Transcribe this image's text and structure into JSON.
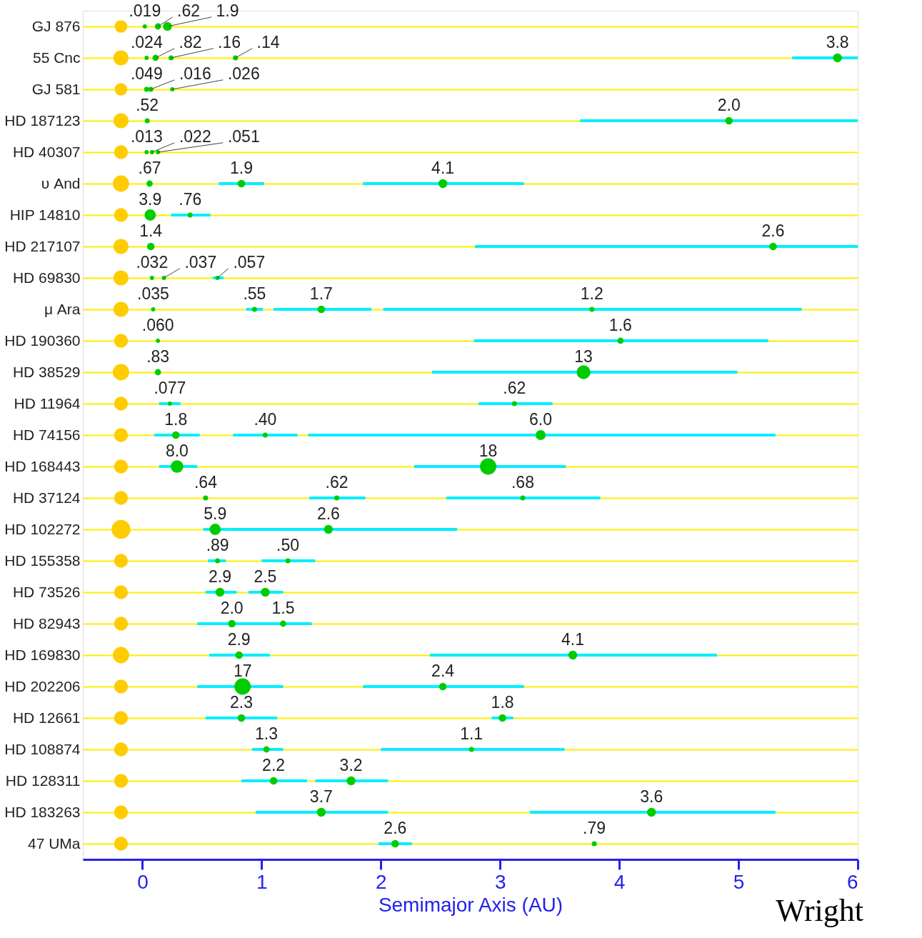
{
  "chart_data": {
    "type": "bubble",
    "orientation": "horizontal",
    "xlabel": "Semimajor Axis (AU)",
    "xlim": [
      -0.5,
      6
    ],
    "xticks": [
      0,
      1,
      2,
      3,
      4,
      5,
      6
    ],
    "grid": "y",
    "categories": [
      "GJ 876",
      "55 Cnc",
      "GJ 581",
      "HD 187123",
      "HD 40307",
      "υ And",
      "HIP 14810",
      "HD 217107",
      "HD 69830",
      "μ Ara",
      "HD 190360",
      "HD 38529",
      "HD 11964",
      "HD 74156",
      "HD 168443",
      "HD 37124",
      "HD 102272",
      "HD 155358",
      "HD 73526",
      "HD 82943",
      "HD 169830",
      "HD 202206",
      "HD 12661",
      "HD 108874",
      "HD 128311",
      "HD 183263",
      "47 UMa"
    ],
    "annotations": [
      "Wright",
      {
        "text": ".019",
        "x": 0.02,
        "y": "GJ 876"
      },
      {
        "text": ".62",
        "x": 0.13,
        "y": "GJ 876"
      },
      {
        "text": "1.9",
        "x": 0.21,
        "y": "GJ 876"
      },
      {
        "text": ".024",
        "x": 0.035,
        "y": "55 Cnc"
      },
      {
        "text": ".82",
        "x": 0.11,
        "y": "55 Cnc"
      },
      {
        "text": ".16",
        "x": 0.24,
        "y": "55 Cnc"
      },
      {
        "text": ".14",
        "x": 0.78,
        "y": "55 Cnc"
      },
      {
        "text": "3.8",
        "x": 5.83,
        "y": "55 Cnc"
      },
      {
        "text": ".049",
        "x": 0.035,
        "y": "GJ 581"
      },
      {
        "text": ".016",
        "x": 0.07,
        "y": "GJ 581"
      },
      {
        "text": ".026",
        "x": 0.25,
        "y": "GJ 581"
      },
      {
        "text": ".52",
        "x": 0.04,
        "y": "HD 187123"
      },
      {
        "text": "2.0",
        "x": 4.92,
        "y": "HD 187123"
      },
      {
        "text": ".013",
        "x": 0.035,
        "y": "HD 40307"
      },
      {
        "text": ".022",
        "x": 0.08,
        "y": "HD 40307"
      },
      {
        "text": ".051",
        "x": 0.13,
        "y": "HD 40307"
      },
      {
        "text": ".67",
        "x": 0.06,
        "y": "υ And"
      },
      {
        "text": "1.9",
        "x": 0.83,
        "y": "υ And"
      },
      {
        "text": "4.1",
        "x": 2.52,
        "y": "υ And"
      },
      {
        "text": "3.9",
        "x": 0.065,
        "y": "HIP 14810"
      },
      {
        "text": ".76",
        "x": 0.4,
        "y": "HIP 14810"
      },
      {
        "text": "1.4",
        "x": 0.07,
        "y": "HD 217107"
      },
      {
        "text": "2.6",
        "x": 5.29,
        "y": "HD 217107"
      },
      {
        "text": ".032",
        "x": 0.08,
        "y": "HD 69830"
      },
      {
        "text": ".037",
        "x": 0.18,
        "y": "HD 69830"
      },
      {
        "text": ".057",
        "x": 0.63,
        "y": "HD 69830"
      },
      {
        "text": ".035",
        "x": 0.09,
        "y": "μ Ara"
      },
      {
        "text": ".55",
        "x": 0.94,
        "y": "μ Ara"
      },
      {
        "text": "1.7",
        "x": 1.5,
        "y": "μ Ara"
      },
      {
        "text": "1.2",
        "x": 3.77,
        "y": "μ Ara"
      },
      {
        "text": ".060",
        "x": 0.13,
        "y": "HD 190360"
      },
      {
        "text": "1.6",
        "x": 4.01,
        "y": "HD 190360"
      },
      {
        "text": ".83",
        "x": 0.13,
        "y": "HD 38529"
      },
      {
        "text": "13",
        "x": 3.7,
        "y": "HD 38529"
      },
      {
        "text": ".077",
        "x": 0.23,
        "y": "HD 11964"
      },
      {
        "text": ".62",
        "x": 3.12,
        "y": "HD 11964"
      },
      {
        "text": "1.8",
        "x": 0.28,
        "y": "HD 74156"
      },
      {
        "text": ".40",
        "x": 1.03,
        "y": "HD 74156"
      },
      {
        "text": "6.0",
        "x": 3.34,
        "y": "HD 74156"
      },
      {
        "text": "8.0",
        "x": 0.29,
        "y": "HD 168443"
      },
      {
        "text": "18",
        "x": 2.9,
        "y": "HD 168443"
      },
      {
        "text": ".64",
        "x": 0.53,
        "y": "HD 37124"
      },
      {
        "text": ".62",
        "x": 1.63,
        "y": "HD 37124"
      },
      {
        "text": ".68",
        "x": 3.19,
        "y": "HD 37124"
      },
      {
        "text": "5.9",
        "x": 0.61,
        "y": "HD 102272"
      },
      {
        "text": "2.6",
        "x": 1.56,
        "y": "HD 102272"
      },
      {
        "text": ".89",
        "x": 0.63,
        "y": "HD 155358"
      },
      {
        "text": ".50",
        "x": 1.22,
        "y": "HD 155358"
      },
      {
        "text": "2.9",
        "x": 0.65,
        "y": "HD 73526"
      },
      {
        "text": "2.5",
        "x": 1.03,
        "y": "HD 73526"
      },
      {
        "text": "2.0",
        "x": 0.75,
        "y": "HD 82943"
      },
      {
        "text": "1.5",
        "x": 1.18,
        "y": "HD 82943"
      },
      {
        "text": "2.9",
        "x": 0.81,
        "y": "HD 169830"
      },
      {
        "text": "4.1",
        "x": 3.61,
        "y": "HD 169830"
      },
      {
        "text": "17",
        "x": 0.84,
        "y": "HD 202206"
      },
      {
        "text": "2.4",
        "x": 2.52,
        "y": "HD 202206"
      },
      {
        "text": "2.3",
        "x": 0.83,
        "y": "HD 12661"
      },
      {
        "text": "1.8",
        "x": 3.02,
        "y": "HD 12661"
      },
      {
        "text": "1.3",
        "x": 1.04,
        "y": "HD 108874"
      },
      {
        "text": "1.1",
        "x": 2.76,
        "y": "HD 108874"
      },
      {
        "text": "2.2",
        "x": 1.1,
        "y": "HD 128311"
      },
      {
        "text": "3.2",
        "x": 1.75,
        "y": "HD 128311"
      },
      {
        "text": "3.7",
        "x": 1.5,
        "y": "HD 183263"
      },
      {
        "text": "3.6",
        "x": 4.27,
        "y": "HD 183263"
      },
      {
        "text": "2.6",
        "x": 2.12,
        "y": "47 UMa"
      },
      {
        "text": ".79",
        "x": 3.79,
        "y": "47 UMa"
      }
    ],
    "series": [
      {
        "color": "#ffcc00",
        "values": [
          -0.18,
          -0.18,
          -0.18,
          -0.18,
          -0.18,
          -0.18,
          -0.18,
          -0.18,
          -0.18,
          -0.18,
          -0.18,
          -0.18,
          -0.18,
          -0.18,
          -0.18,
          -0.18,
          -0.18,
          -0.18,
          -0.18,
          -0.18,
          -0.18,
          -0.18,
          -0.18,
          -0.18,
          -0.18,
          -0.18,
          -0.18
        ],
        "sizes": [
          0.44,
          0.64,
          0.44,
          0.64,
          0.54,
          0.75,
          0.54,
          0.64,
          0.64,
          0.64,
          0.54,
          0.75,
          0.54,
          0.54,
          0.54,
          0.54,
          1,
          0.54,
          0.54,
          0.54,
          0.75,
          0.54,
          0.54,
          0.54,
          0.54,
          0.54,
          0.54
        ]
      },
      {
        "color": "#00cc00",
        "values": [
          0.02,
          0.035,
          0.035,
          0.04,
          0.035,
          0.06,
          0.065,
          0.07,
          0.08,
          0.09,
          0.13,
          0.13,
          0.23,
          0.28,
          0.29,
          0.53,
          0.61,
          0.63,
          0.65,
          0.75,
          0.81,
          0.84,
          0.83,
          1.04,
          1.1,
          1.5,
          2.12
        ],
        "sizes": [
          0.05,
          0.05,
          0.07,
          0.07,
          0.05,
          0.11,
          0.36,
          0.16,
          0.05,
          0.05,
          0.05,
          0.11,
          0.05,
          0.16,
          0.44,
          0.07,
          0.36,
          0.07,
          0.22,
          0.16,
          0.16,
          0.75,
          0.16,
          0.11,
          0.16,
          0.22,
          0.16
        ],
        "errors": [
          null,
          null,
          null,
          null,
          null,
          null,
          null,
          null,
          null,
          null,
          null,
          null,
          [
            0.14,
            0.32
          ],
          [
            0.1,
            0.48
          ],
          [
            0.14,
            0.46
          ],
          null,
          [
            0.51,
            0.7
          ],
          [
            0.55,
            0.7
          ],
          [
            0.53,
            0.79
          ],
          [
            0.46,
            1.04
          ],
          [
            0.56,
            1.07
          ],
          [
            0.46,
            1.18
          ],
          [
            0.53,
            1.13
          ],
          [
            0.92,
            1.18
          ],
          [
            0.83,
            1.38
          ],
          [
            0.95,
            2.06
          ],
          [
            1.98,
            2.26
          ]
        ]
      },
      {
        "color": "#00cc00",
        "values": [
          0.13,
          0.11,
          0.07,
          4.92,
          0.08,
          0.83,
          0.4,
          5.29,
          0.18,
          0.94,
          4.01,
          3.7,
          3.12,
          1.03,
          2.9,
          1.63,
          1.56,
          1.22,
          1.03,
          1.18,
          3.61,
          2.52,
          3.02,
          2.76,
          1.75,
          4.27,
          3.79
        ],
        "sizes": [
          0.11,
          0.11,
          0.07,
          0.16,
          0.05,
          0.16,
          0.07,
          0.16,
          0.05,
          0.07,
          0.11,
          0.54,
          0.07,
          0.07,
          0.75,
          0.07,
          0.22,
          0.07,
          0.22,
          0.11,
          0.22,
          0.16,
          0.16,
          0.07,
          0.22,
          0.22,
          0.07
        ],
        "errors": [
          null,
          null,
          null,
          [
            3.67,
            6.0
          ],
          null,
          [
            0.64,
            1.02
          ],
          [
            0.24,
            0.57
          ],
          [
            2.79,
            6.0
          ],
          null,
          [
            0.87,
            1.01
          ],
          [
            2.78,
            5.25
          ],
          [
            2.43,
            4.99
          ],
          [
            2.82,
            3.44
          ],
          [
            0.76,
            1.3
          ],
          [
            2.28,
            3.55
          ],
          [
            1.4,
            1.87
          ],
          [
            0.7,
            2.64
          ],
          [
            1.0,
            1.45
          ],
          [
            0.89,
            1.18
          ],
          [
            0.96,
            1.42
          ],
          [
            2.41,
            4.82
          ],
          [
            1.85,
            3.2
          ],
          [
            2.93,
            3.11
          ],
          [
            2.0,
            3.54
          ],
          [
            1.45,
            2.06
          ],
          [
            3.25,
            5.31
          ],
          null
        ]
      },
      {
        "color": "#00cc00",
        "values": [
          0.21,
          0.24,
          0.25,
          null,
          0.13,
          2.52,
          null,
          null,
          0.63,
          1.5,
          null,
          null,
          null,
          3.34,
          null,
          3.19,
          null,
          null,
          null,
          null,
          null,
          null,
          null,
          null,
          null,
          null,
          null
        ],
        "sizes": [
          0.22,
          0.07,
          0.05,
          null,
          0.05,
          0.22,
          null,
          null,
          0.05,
          0.16,
          null,
          null,
          null,
          0.28,
          null,
          0.07,
          null,
          null,
          null,
          null,
          null,
          null,
          null,
          null,
          null,
          null,
          null
        ],
        "errors": [
          null,
          null,
          null,
          null,
          null,
          [
            1.85,
            3.2
          ],
          null,
          null,
          [
            0.59,
            0.68
          ],
          [
            1.1,
            1.92
          ],
          null,
          null,
          null,
          [
            1.39,
            5.31
          ],
          null,
          [
            2.55,
            3.84
          ],
          null,
          null,
          null,
          null,
          null,
          null,
          null,
          null,
          null,
          null,
          null
        ]
      },
      {
        "color": "#00cc00",
        "values": [
          null,
          0.78,
          null,
          null,
          null,
          null,
          null,
          null,
          null,
          3.77,
          null,
          null,
          null,
          null,
          null,
          null,
          null,
          null,
          null,
          null,
          null,
          null,
          null,
          null,
          null,
          null,
          null
        ],
        "sizes": [
          null,
          0.07,
          null,
          null,
          null,
          null,
          null,
          null,
          null,
          0.07,
          null,
          null,
          null,
          null,
          null,
          null,
          null,
          null,
          null,
          null,
          null,
          null,
          null,
          null,
          null,
          null,
          null
        ],
        "errors": [
          null,
          null,
          null,
          null,
          null,
          null,
          null,
          null,
          null,
          [
            2.02,
            5.53
          ],
          null,
          null,
          null,
          null,
          null,
          null,
          null,
          null,
          null,
          null,
          null,
          null,
          null,
          null,
          null,
          null,
          null
        ]
      },
      {
        "color": "#00cc00",
        "values": [
          null,
          5.83,
          null,
          null,
          null,
          null,
          null,
          null,
          null,
          null,
          null,
          null,
          null,
          null,
          null,
          null,
          null,
          null,
          null,
          null,
          null,
          null,
          null,
          null,
          null,
          null,
          null
        ],
        "sizes": [
          null,
          0.22,
          null,
          null,
          null,
          null,
          null,
          null,
          null,
          null,
          null,
          null,
          null,
          null,
          null,
          null,
          null,
          null,
          null,
          null,
          null,
          null,
          null,
          null,
          null,
          null,
          null
        ],
        "errors": [
          null,
          [
            5.45,
            6.0
          ],
          null,
          null,
          null,
          null,
          null,
          null,
          null,
          null,
          null,
          null,
          null,
          null,
          null,
          null,
          null,
          null,
          null,
          null,
          null,
          null,
          null,
          null,
          null,
          null,
          null
        ]
      }
    ]
  }
}
